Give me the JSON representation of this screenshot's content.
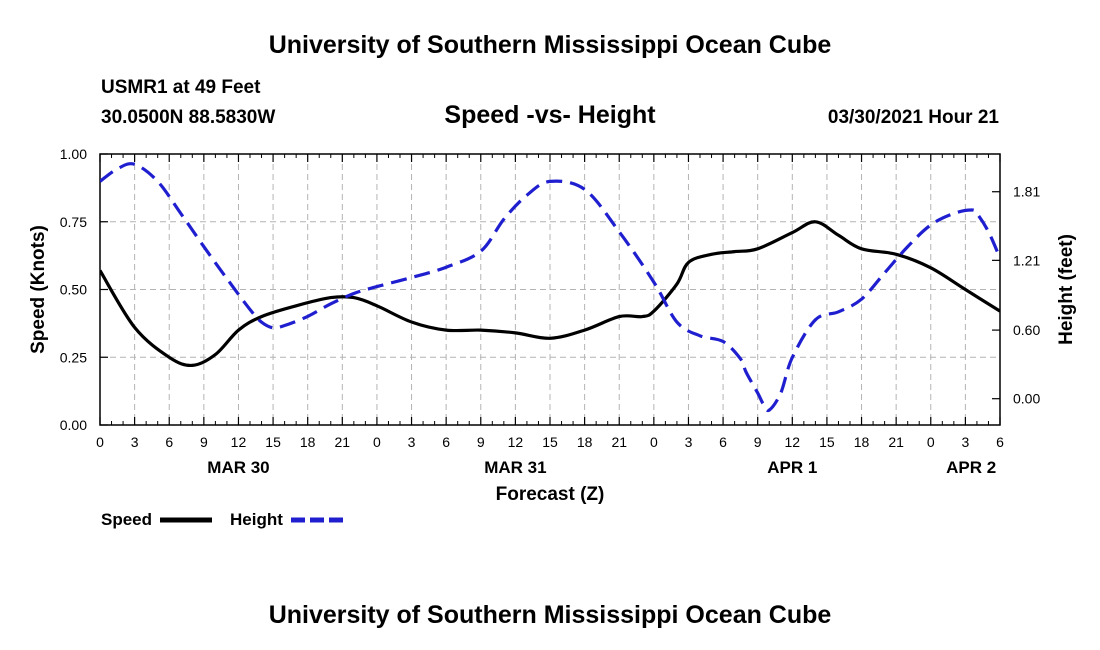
{
  "header": {
    "title": "University of Southern Mississippi Ocean Cube",
    "station": "USMR1 at 49 Feet",
    "coords": "30.0500N  88.5830W",
    "subtitle": "Speed -vs- Height",
    "datetime": "03/30/2021 Hour 21"
  },
  "footer": {
    "title": "University of Southern Mississippi Ocean Cube"
  },
  "legend": {
    "speed_label": "Speed",
    "height_label": "Height"
  },
  "colors": {
    "speed": "#000000",
    "height": "#1f1fd0",
    "grid": "#b4b4b4"
  },
  "chart_data": {
    "type": "line",
    "title": "Speed -vs- Height",
    "xlabel": "Forecast (Z)",
    "ylabel": "Speed (Knots)",
    "ylabel_right": "Height (feet)",
    "xlim": [
      0,
      78
    ],
    "ylim": [
      0,
      1
    ],
    "ylim_right": [
      -0.23,
      2.14
    ],
    "x_ticks": [
      0,
      3,
      6,
      9,
      12,
      15,
      18,
      21,
      24,
      27,
      30,
      33,
      36,
      39,
      42,
      45,
      48,
      51,
      54,
      57,
      60,
      63,
      66,
      69,
      72,
      75,
      78
    ],
    "x_tick_labels": [
      "0",
      "3",
      "6",
      "9",
      "12",
      "15",
      "18",
      "21",
      "0",
      "3",
      "6",
      "9",
      "12",
      "15",
      "18",
      "21",
      "0",
      "3",
      "6",
      "9",
      "12",
      "15",
      "18",
      "21",
      "0",
      "3",
      "6"
    ],
    "date_labels": [
      {
        "x": 12,
        "label": "MAR 30"
      },
      {
        "x": 36,
        "label": "MAR 31"
      },
      {
        "x": 60,
        "label": "APR 1"
      },
      {
        "x": 75.5,
        "label": "APR 2"
      }
    ],
    "y_ticks": [
      0,
      0.25,
      0.5,
      0.75,
      1.0
    ],
    "y_tick_labels": [
      "0.00",
      "0.25",
      "0.50",
      "0.75",
      "1.00"
    ],
    "y_right_ticks": [
      0.0,
      0.6,
      1.21,
      1.81
    ],
    "y_right_tick_labels": [
      "0.00",
      "0.60",
      "1.21",
      "1.81"
    ],
    "series": [
      {
        "name": "Speed",
        "axis": "left",
        "style": "solid",
        "x": [
          0,
          3,
          6,
          8,
          10,
          12,
          14,
          17,
          20,
          22,
          24,
          27,
          30,
          33,
          36,
          39,
          42,
          45,
          47,
          48,
          50,
          51,
          53,
          55,
          57,
          60,
          62,
          64,
          66,
          69,
          72,
          75,
          78
        ],
        "values": [
          0.57,
          0.36,
          0.25,
          0.22,
          0.26,
          0.35,
          0.4,
          0.44,
          0.47,
          0.47,
          0.44,
          0.38,
          0.35,
          0.35,
          0.34,
          0.32,
          0.35,
          0.4,
          0.4,
          0.42,
          0.52,
          0.6,
          0.63,
          0.64,
          0.65,
          0.71,
          0.75,
          0.7,
          0.65,
          0.63,
          0.58,
          0.5,
          0.42
        ]
      },
      {
        "name": "Height",
        "axis": "right",
        "style": "dashed",
        "x": [
          0,
          1.5,
          3,
          5,
          7,
          9,
          11,
          13,
          14,
          15,
          16,
          18,
          20,
          22,
          24,
          27,
          30,
          33,
          35,
          37,
          39,
          42,
          45,
          48,
          50,
          52,
          54,
          55.5,
          56,
          57,
          57.5,
          58,
          59,
          60,
          62,
          64,
          66,
          68,
          70,
          72,
          74,
          75.5,
          76,
          77,
          78
        ],
        "values": [
          1.9,
          2.01,
          2.05,
          1.9,
          1.62,
          1.33,
          1.05,
          0.78,
          0.67,
          0.62,
          0.64,
          0.72,
          0.83,
          0.92,
          0.98,
          1.06,
          1.15,
          1.29,
          1.57,
          1.78,
          1.9,
          1.83,
          1.46,
          1.02,
          0.67,
          0.55,
          0.5,
          0.35,
          0.23,
          0.05,
          -0.05,
          -0.1,
          0.05,
          0.36,
          0.69,
          0.76,
          0.87,
          1.1,
          1.33,
          1.52,
          1.62,
          1.65,
          1.62,
          1.46,
          1.23
        ]
      }
    ]
  }
}
